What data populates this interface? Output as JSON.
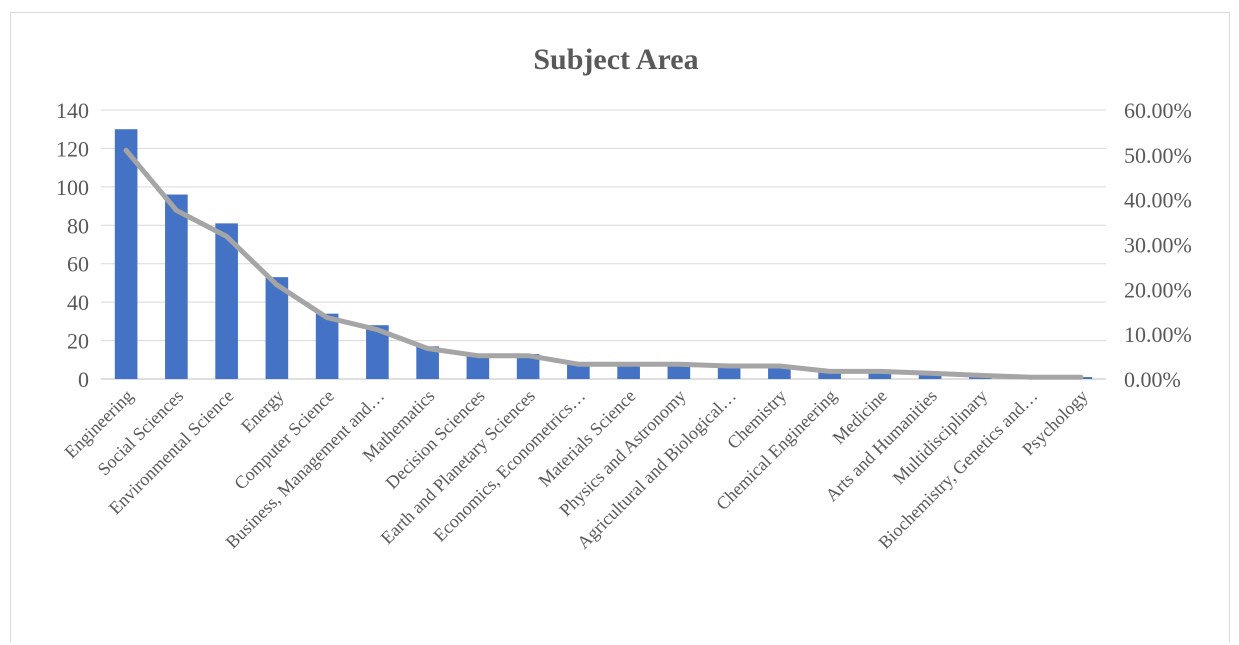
{
  "chart_data": {
    "type": "bar",
    "title": "Subject Area",
    "xlabel": "",
    "ylabel": "",
    "categories": [
      "Engineering",
      "Social Sciences",
      "Environmental Science",
      "Energy",
      "Computer Science",
      "Business, Management and…",
      "Mathematics",
      "Decision Sciences",
      "Earth and Planetary Sciences",
      "Economics, Econometrics…",
      "Materials Science",
      "Physics and Astronomy",
      "Agricultural and Biological…",
      "Chemistry",
      "Chemical Engineering",
      "Medicine",
      "Arts and Humanities",
      "Multidisciplinary",
      "Biochemistry, Genetics and…",
      "Psychology"
    ],
    "series": [
      {
        "type": "bar",
        "axis": "left",
        "color": "#4472c4",
        "values": [
          130,
          96,
          81,
          53,
          34,
          28,
          17,
          13,
          13,
          8,
          8,
          8,
          7,
          7,
          4,
          4,
          3,
          2,
          1,
          1
        ]
      },
      {
        "type": "line",
        "axis": "right",
        "color": "#a5a5a5",
        "values": [
          0.51,
          0.376,
          0.318,
          0.21,
          0.137,
          0.11,
          0.068,
          0.052,
          0.052,
          0.033,
          0.033,
          0.033,
          0.029,
          0.029,
          0.017,
          0.017,
          0.013,
          0.008,
          0.004,
          0.004
        ]
      }
    ],
    "y_left": {
      "min": 0,
      "max": 140,
      "ticks": [
        "0",
        "20",
        "40",
        "60",
        "80",
        "100",
        "120",
        "140"
      ]
    },
    "y_right": {
      "min": 0,
      "max": 0.6,
      "ticks": [
        "0.00%",
        "10.00%",
        "20.00%",
        "30.00%",
        "40.00%",
        "50.00%",
        "60.00%"
      ]
    },
    "grid": true,
    "legend": "none"
  }
}
